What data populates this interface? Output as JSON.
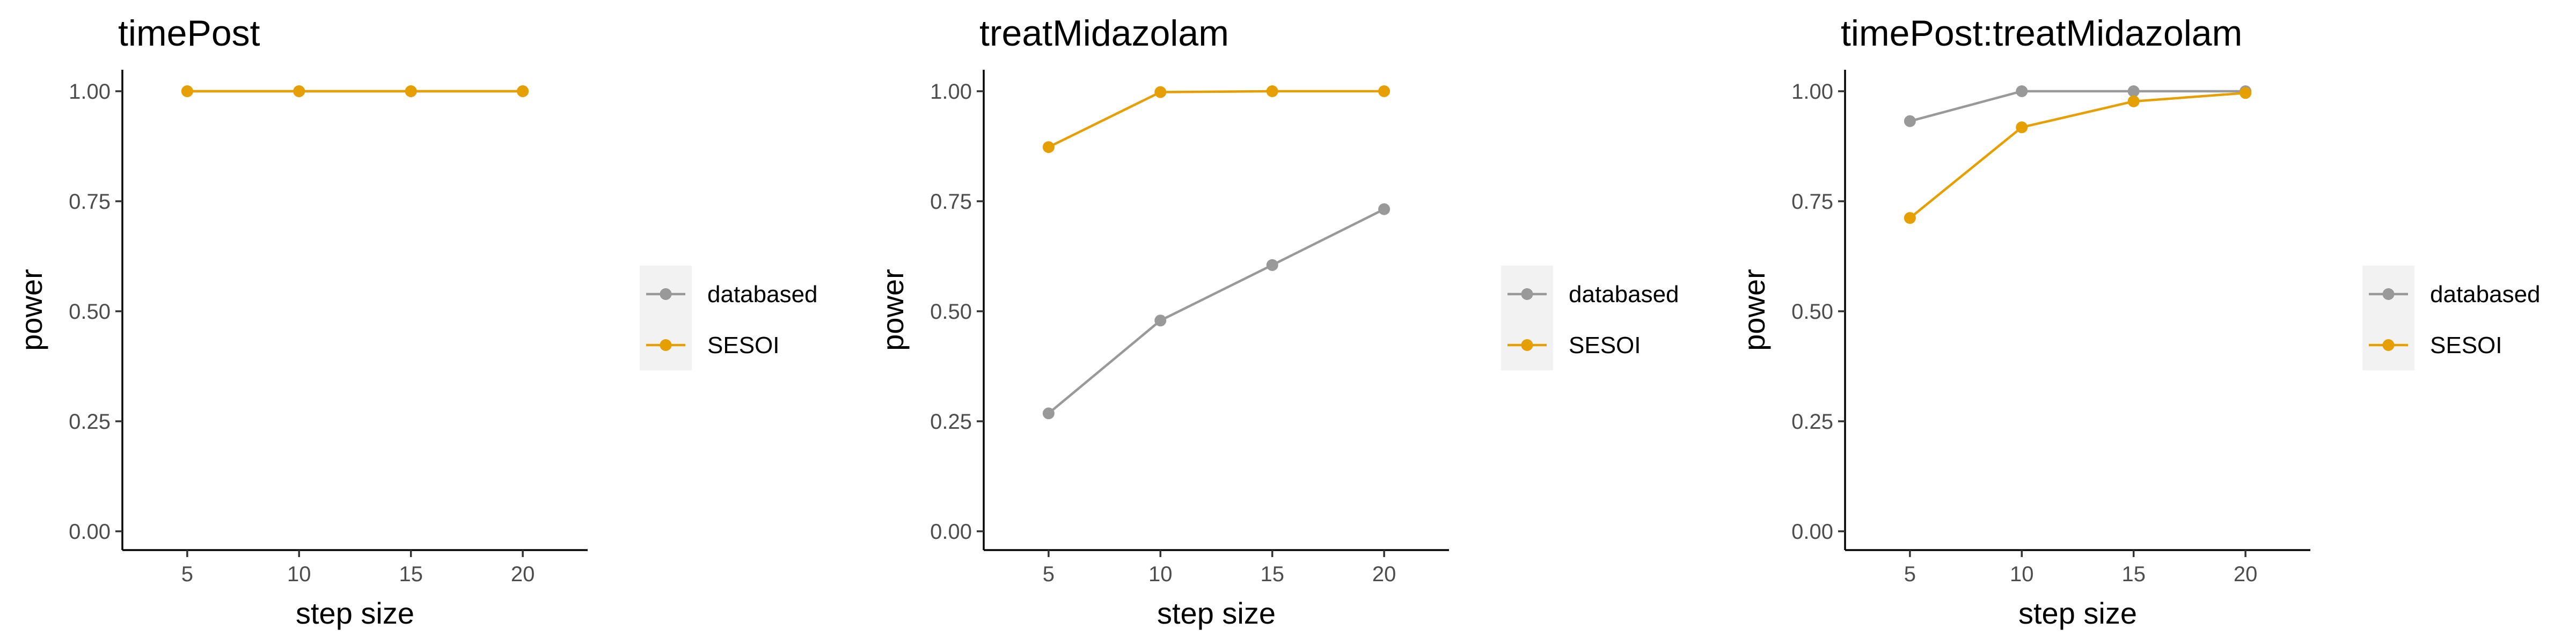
{
  "chart_data": [
    {
      "type": "line",
      "title": "timePost",
      "xlabel": "step size",
      "ylabel": "power",
      "x": [
        5,
        10,
        15,
        20
      ],
      "xticks": [
        "5",
        "10",
        "15",
        "20"
      ],
      "yticks": [
        "0.00",
        "0.25",
        "0.50",
        "0.75",
        "1.00"
      ],
      "xlim": [
        2.1,
        22.9
      ],
      "ylim": [
        0,
        1.0
      ],
      "series": [
        {
          "name": "databased",
          "color": "#999999",
          "values": [
            1.0,
            1.0,
            1.0,
            1.0
          ]
        },
        {
          "name": "SESOI",
          "color": "#E69F00",
          "values": [
            1.0,
            1.0,
            1.0,
            1.0
          ]
        }
      ],
      "legend_position": "right",
      "grid": false
    },
    {
      "type": "line",
      "title": "treatMidazolam",
      "xlabel": "step size",
      "ylabel": "power",
      "x": [
        5,
        10,
        15,
        20
      ],
      "xticks": [
        "5",
        "10",
        "15",
        "20"
      ],
      "yticks": [
        "0.00",
        "0.25",
        "0.50",
        "0.75",
        "1.00"
      ],
      "xlim": [
        2.1,
        22.9
      ],
      "ylim": [
        0,
        1.0
      ],
      "series": [
        {
          "name": "databased",
          "color": "#999999",
          "values": [
            0.268,
            0.479,
            0.605,
            0.732
          ]
        },
        {
          "name": "SESOI",
          "color": "#E69F00",
          "values": [
            0.873,
            0.998,
            1.0,
            1.0
          ]
        }
      ],
      "legend_position": "right",
      "grid": false
    },
    {
      "type": "line",
      "title": "timePost:treatMidazolam",
      "xlabel": "step size",
      "ylabel": "power",
      "x": [
        5,
        10,
        15,
        20
      ],
      "xticks": [
        "5",
        "10",
        "15",
        "20"
      ],
      "yticks": [
        "0.00",
        "0.25",
        "0.50",
        "0.75",
        "1.00"
      ],
      "xlim": [
        2.1,
        22.9
      ],
      "ylim": [
        0,
        1.0
      ],
      "series": [
        {
          "name": "databased",
          "color": "#999999",
          "values": [
            0.932,
            1.0,
            1.0,
            1.0
          ]
        },
        {
          "name": "SESOI",
          "color": "#E69F00",
          "values": [
            0.712,
            0.918,
            0.977,
            0.996
          ]
        }
      ],
      "legend_position": "right",
      "grid": false
    }
  ]
}
